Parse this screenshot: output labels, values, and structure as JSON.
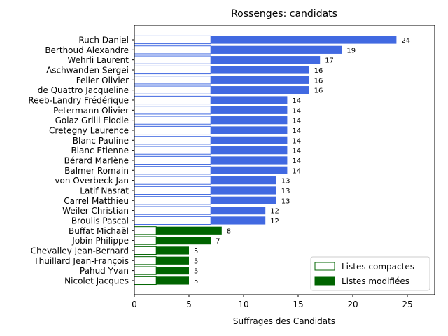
{
  "chart_data": {
    "type": "bar",
    "orientation": "horizontal",
    "stacked": true,
    "title": "Rossenges: candidats",
    "xlabel": "Suffrages des Candidats",
    "ylabel": "",
    "xlim": [
      0,
      27.5
    ],
    "xticks": [
      0,
      5,
      10,
      15,
      20,
      25
    ],
    "grid": false,
    "legend_position": "bottom-right",
    "categories": [
      "Ruch Daniel",
      "Berthoud Alexandre",
      "Wehrli Laurent",
      "Aschwanden Sergei",
      "Feller Olivier",
      "de Quattro Jacqueline",
      "Reeb-Landry Frédérique",
      "Petermann Olivier",
      "Golaz Grilli Elodie",
      "Cretegny Laurence",
      "Blanc Pauline",
      "Blanc Etienne",
      "Bérard Marlène",
      "Balmer Romain",
      "von Overbeck Jan",
      "Latif Nasrat",
      "Carrel Matthieu",
      "Weiler Christian",
      "Broulis Pascal",
      "Buffat Michaël",
      "Jobin Philippe",
      "Chevalley Jean-Bernard",
      "Thuillard Jean-François",
      "Pahud Yvan",
      "Nicolet Jacques"
    ],
    "totals": [
      24,
      19,
      17,
      16,
      16,
      16,
      14,
      14,
      14,
      14,
      14,
      14,
      14,
      14,
      13,
      13,
      13,
      12,
      12,
      8,
      7,
      5,
      5,
      5,
      5
    ],
    "series": [
      {
        "name": "Listes compactes",
        "values": [
          7,
          7,
          7,
          7,
          7,
          7,
          7,
          7,
          7,
          7,
          7,
          7,
          7,
          7,
          7,
          7,
          7,
          7,
          7,
          2,
          2,
          2,
          2,
          2,
          2
        ]
      },
      {
        "name": "Listes modifiées",
        "values": [
          17,
          12,
          10,
          9,
          9,
          9,
          7,
          7,
          7,
          7,
          7,
          7,
          7,
          7,
          6,
          6,
          6,
          5,
          5,
          6,
          5,
          3,
          3,
          3,
          3
        ]
      }
    ],
    "colors": {
      "group_a": "#4169e1",
      "group_b": "#006400",
      "group_a_count": 19
    }
  }
}
